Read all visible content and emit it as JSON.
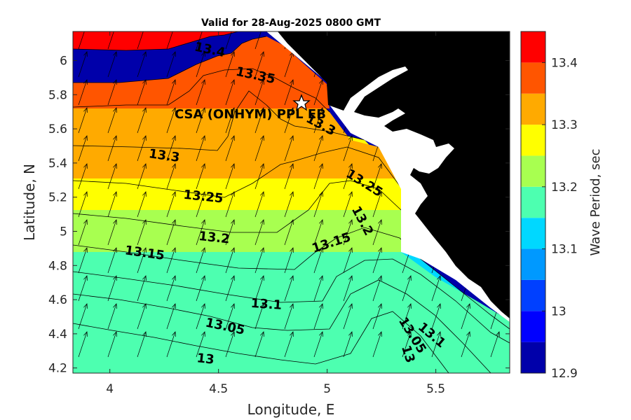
{
  "chart_data": {
    "type": "contour",
    "title": "Valid for 28-Aug-2025 0800 GMT",
    "xlabel": "Longitude, E",
    "ylabel": "Latitude, N",
    "xlim": [
      3.83,
      5.84
    ],
    "ylim": [
      4.17,
      6.17
    ],
    "x_ticks": [
      4,
      4.5,
      5,
      5.5
    ],
    "x_tick_labels": [
      "4",
      "4.5",
      "5",
      "5.5"
    ],
    "y_ticks": [
      4.2,
      4.4,
      4.6,
      4.8,
      5,
      5.2,
      5.4,
      5.6,
      5.8,
      6
    ],
    "y_tick_labels": [
      "4.2",
      "4.4",
      "4.6",
      "4.8",
      "5",
      "5.2",
      "5.4",
      "5.6",
      "5.8",
      "6"
    ],
    "colorbar": {
      "label": "Wave Period, sec",
      "range": [
        12.9,
        13.45
      ],
      "ticks": [
        12.9,
        13,
        13.1,
        13.2,
        13.3,
        13.4
      ],
      "tick_labels": [
        "12.9",
        "13",
        "13.1",
        "13.2",
        "13.3",
        "13.4"
      ],
      "levels": [
        12.9,
        12.95,
        13,
        13.05,
        13.1,
        13.15,
        13.2,
        13.25,
        13.3,
        13.35,
        13.4,
        13.45
      ],
      "colors": [
        "#0000aa",
        "#0000ff",
        "#0040ff",
        "#0099ff",
        "#00d8ff",
        "#4dffb0",
        "#a8ff50",
        "#ffff00",
        "#ffaa00",
        "#ff5500",
        "#ff0000"
      ]
    },
    "contour_labels": [
      {
        "text": "13.4",
        "lon": 4.46,
        "lat": 6.06
      },
      {
        "text": "13.35",
        "lon": 4.67,
        "lat": 5.91
      },
      {
        "text": "13.3",
        "lon": 4.25,
        "lat": 5.44
      },
      {
        "text": "13.3",
        "lon": 4.97,
        "lat": 5.62
      },
      {
        "text": "13.25",
        "lon": 4.43,
        "lat": 5.2
      },
      {
        "text": "13.25",
        "lon": 5.17,
        "lat": 5.28
      },
      {
        "text": "13.2",
        "lon": 4.48,
        "lat": 4.96
      },
      {
        "text": "13.2",
        "lon": 5.16,
        "lat": 5.06
      },
      {
        "text": "13.15",
        "lon": 4.16,
        "lat": 4.87
      },
      {
        "text": "13.15",
        "lon": 5.02,
        "lat": 4.93
      },
      {
        "text": "13.1",
        "lon": 4.72,
        "lat": 4.57
      },
      {
        "text": "13.1",
        "lon": 5.48,
        "lat": 4.39
      },
      {
        "text": "13.05",
        "lon": 4.53,
        "lat": 4.44
      },
      {
        "text": "13.05",
        "lon": 5.39,
        "lat": 4.39
      },
      {
        "text": "13",
        "lon": 4.44,
        "lat": 4.25
      },
      {
        "text": "13",
        "lon": 5.37,
        "lat": 4.28
      }
    ],
    "station": {
      "label": "CSA (ONHYM) PPL EB",
      "lon": 4.88,
      "lat": 5.74
    },
    "land_color": "#000000",
    "vector_field": "wave direction arrows, predominantly toward the north-northeast"
  }
}
